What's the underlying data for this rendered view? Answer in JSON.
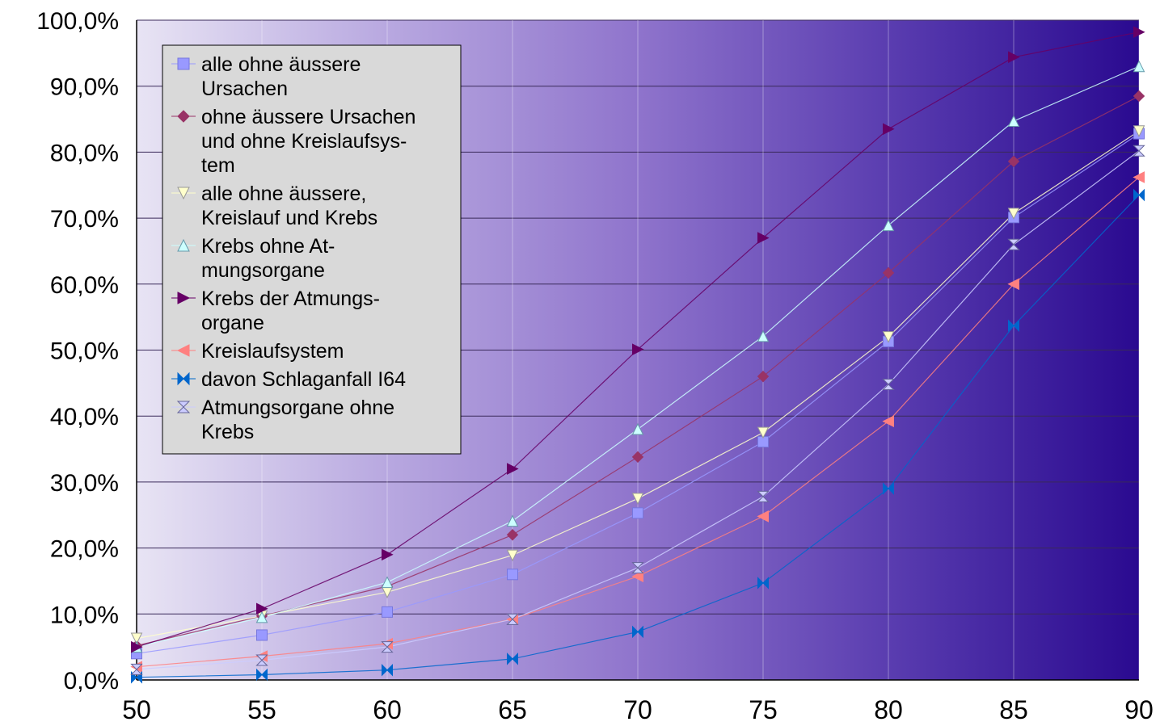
{
  "chart_data": {
    "type": "line",
    "title": "",
    "xlabel": "",
    "ylabel": "",
    "x": [
      50,
      55,
      60,
      65,
      70,
      75,
      80,
      85,
      90
    ],
    "x_tick_labels": [
      "50",
      "55",
      "60",
      "65",
      "70",
      "75",
      "80",
      "85",
      "90"
    ],
    "ylim": [
      0,
      100
    ],
    "y_tick_labels": [
      "0,0%",
      "10,0%",
      "20,0%",
      "30,0%",
      "40,0%",
      "50,0%",
      "60,0%",
      "70,0%",
      "80,0%",
      "90,0%",
      "100,0%"
    ],
    "grid": true,
    "legend_position": "top-left",
    "background": "gradient light lavender to dark indigo",
    "series": [
      {
        "name": "alle ohne äussere Ursachen",
        "legend_lines": [
          "alle ohne äussere",
          "Ursachen"
        ],
        "marker": "square",
        "color": "#9999ff",
        "stroke": "#7777dd",
        "values": [
          4.0,
          6.8,
          10.3,
          16.0,
          25.3,
          36.1,
          51.3,
          70.1,
          82.8
        ]
      },
      {
        "name": "ohne äussere Ursachen und ohne Kreislaufsystem",
        "legend_lines": [
          "ohne äussere Ursachen",
          "und ohne Kreislaufsys-",
          "tem"
        ],
        "marker": "diamond",
        "color": "#993366",
        "stroke": "#993366",
        "values": [
          5.2,
          9.7,
          14.2,
          22.0,
          33.8,
          46.0,
          61.7,
          78.6,
          88.5
        ]
      },
      {
        "name": "alle ohne äussere, Kreislauf und Krebs",
        "legend_lines": [
          "alle ohne äussere,",
          "Kreislauf und Krebs"
        ],
        "marker": "triangle-down",
        "color": "#ffffcc",
        "stroke": "#999999",
        "values": [
          6.3,
          9.7,
          13.3,
          18.9,
          27.5,
          37.5,
          52.0,
          70.7,
          83.2
        ]
      },
      {
        "name": "Krebs ohne Atmungsorgane",
        "legend_lines": [
          "Krebs ohne At-",
          "mungsorgane"
        ],
        "marker": "triangle-up",
        "color": "#ccffff",
        "stroke": "#6699aa",
        "values": [
          5.0,
          9.5,
          14.8,
          24.1,
          38.0,
          52.1,
          68.9,
          84.7,
          93.0
        ]
      },
      {
        "name": "Krebs der Atmungsorgane",
        "legend_lines": [
          "Krebs der Atmungs-",
          "organe"
        ],
        "marker": "triangle-right",
        "color": "#660066",
        "stroke": "#660066",
        "values": [
          5.0,
          10.8,
          19.0,
          32.0,
          50.1,
          67.0,
          83.5,
          94.4,
          98.2
        ]
      },
      {
        "name": "Kreislaufsystem",
        "legend_lines": [
          "Kreislaufsystem"
        ],
        "marker": "triangle-left",
        "color": "#ff8080",
        "stroke": "#ff8080",
        "values": [
          2.0,
          3.6,
          5.5,
          9.2,
          15.7,
          24.8,
          39.2,
          60.0,
          76.2
        ]
      },
      {
        "name": "davon Schlaganfall I64",
        "legend_lines": [
          "davon Schlaganfall I64"
        ],
        "marker": "bowtie",
        "color": "#0066cc",
        "stroke": "#0066cc",
        "values": [
          0.4,
          0.8,
          1.5,
          3.2,
          7.3,
          14.7,
          29.0,
          53.7,
          73.5
        ]
      },
      {
        "name": "Atmungsorgane ohne Krebs",
        "legend_lines": [
          "Atmungsorgane ohne",
          "Krebs"
        ],
        "marker": "hourglass",
        "color": "#ccccff",
        "stroke": "#666699",
        "values": [
          1.6,
          3.0,
          5.0,
          9.2,
          17.0,
          27.8,
          44.8,
          66.0,
          80.2
        ]
      }
    ]
  }
}
